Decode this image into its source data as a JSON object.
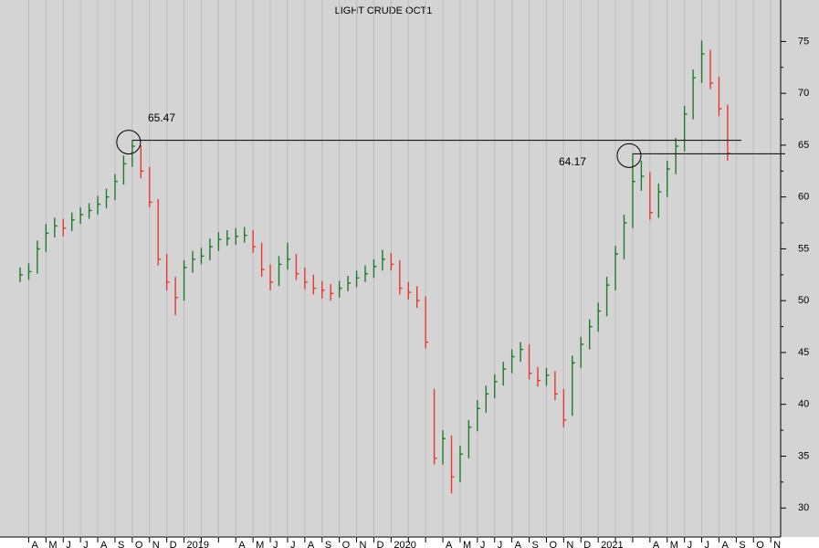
{
  "chart_data": {
    "type": "ohlc",
    "title": "LIGHT CRUDE OCT1",
    "categories": [
      null,
      "A",
      null,
      "M",
      null,
      "J",
      null,
      "J",
      null,
      "A",
      null,
      "S",
      null,
      "O",
      null,
      "N",
      null,
      "D",
      null,
      "2019",
      null,
      null,
      null,
      null,
      null,
      "A",
      null,
      "M",
      null,
      "J",
      null,
      "J",
      null,
      "A",
      null,
      "S",
      null,
      "O",
      null,
      "N",
      null,
      "D",
      null,
      "2020",
      null,
      null,
      null,
      null,
      null,
      "A",
      null,
      "M",
      null,
      "J",
      null,
      "J",
      null,
      "A",
      null,
      "S",
      null,
      "O",
      null,
      "N",
      null,
      "D",
      null,
      "2021",
      null,
      null,
      null,
      null,
      null,
      "A",
      null,
      "M",
      null,
      "J",
      null,
      "J",
      null,
      "A",
      null,
      "S",
      null,
      "O",
      null,
      "N",
      null
    ],
    "high": [
      53.2,
      53.6,
      55.8,
      57.4,
      58.0,
      57.9,
      58.5,
      59.0,
      59.4,
      60.1,
      60.8,
      62.2,
      64.0,
      65.47,
      65.0,
      62.9,
      59.8,
      54.5,
      52.3,
      53.9,
      54.8,
      55.1,
      56.0,
      56.6,
      56.8,
      57.0,
      57.1,
      56.8,
      55.6,
      53.5,
      54.3,
      55.6,
      54.5,
      53.2,
      52.5,
      51.9,
      51.6,
      51.9,
      52.4,
      52.9,
      53.4,
      54.0,
      54.9,
      54.6,
      53.9,
      51.8,
      51.4,
      50.4,
      41.5,
      37.5,
      37.0,
      36.0,
      38.5,
      40.4,
      41.8,
      42.9,
      44.1,
      45.3,
      46.0,
      45.8,
      43.6,
      43.5,
      43.2,
      41.5,
      44.7,
      46.5,
      48.2,
      49.8,
      52.3,
      55.3,
      58.3,
      64.17,
      63.5,
      62.4,
      61.3,
      63.5,
      65.7,
      68.8,
      72.3,
      75.1,
      74.2,
      71.6,
      68.9,
      null,
      null,
      null,
      null,
      null,
      null
    ],
    "low": [
      51.8,
      52.0,
      52.6,
      54.7,
      56.1,
      56.2,
      56.7,
      57.4,
      57.9,
      58.3,
      58.9,
      59.7,
      61.2,
      62.9,
      61.8,
      59.0,
      53.4,
      51.0,
      48.6,
      50.0,
      52.7,
      53.5,
      53.9,
      54.8,
      55.3,
      55.4,
      55.6,
      54.6,
      52.3,
      51.0,
      51.4,
      53.0,
      52.0,
      51.1,
      50.6,
      50.2,
      50.0,
      50.3,
      50.9,
      51.3,
      51.8,
      52.2,
      52.9,
      52.9,
      50.6,
      50.1,
      49.3,
      45.4,
      34.2,
      34.2,
      31.4,
      32.5,
      34.8,
      37.4,
      39.2,
      40.6,
      41.8,
      43.0,
      44.1,
      42.4,
      41.7,
      41.8,
      40.4,
      37.8,
      38.9,
      43.5,
      45.3,
      47.0,
      48.5,
      51.0,
      54.0,
      57.0,
      60.6,
      57.8,
      58.0,
      60.0,
      62.2,
      64.4,
      67.5,
      71.0,
      70.4,
      67.8,
      63.5,
      null,
      null,
      null,
      null,
      null,
      null
    ],
    "close": [
      52.5,
      52.8,
      55,
      56.5,
      57.2,
      57,
      57.8,
      58.3,
      58.7,
      59.3,
      60,
      61.5,
      63.2,
      64.9,
      62.5,
      59.5,
      54,
      51.8,
      50.3,
      53.2,
      54,
      54.3,
      55.2,
      55.9,
      56,
      56.2,
      56.3,
      55.2,
      53,
      51.8,
      53.5,
      54,
      52.6,
      51.8,
      51.2,
      51,
      50.7,
      51.2,
      51.7,
      52.2,
      52.6,
      53.3,
      54,
      53.5,
      51.2,
      50.8,
      50,
      46,
      34.8,
      36.7,
      33,
      35.2,
      37.8,
      39.6,
      41,
      42.2,
      43.4,
      44.6,
      45.3,
      43,
      42.3,
      42.8,
      41,
      38.5,
      44,
      45.8,
      47.5,
      49,
      51.5,
      54.5,
      57.5,
      61.5,
      62,
      58.5,
      60.5,
      62.7,
      64.9,
      68,
      71.5,
      73.8,
      71,
      68.5,
      64.2,
      null,
      null,
      null,
      null,
      null,
      null
    ],
    "up_color": "#1f7a2a",
    "down_color": "#e8392f",
    "ylim": [
      27.2,
      79.0
    ],
    "yticks": [
      30,
      35,
      40,
      45,
      50,
      55,
      60,
      65,
      70,
      75
    ],
    "annotations": [
      {
        "text": "65.47",
        "value": 65.47
      },
      {
        "text": "64.17",
        "value": 64.17
      }
    ]
  }
}
